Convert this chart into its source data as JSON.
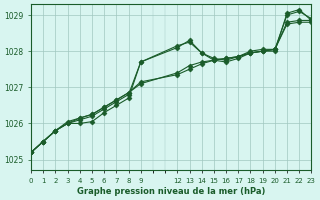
{
  "title": "Graphe pression niveau de la mer (hPa)",
  "bg_color": "#d8f5f0",
  "grid_color": "#a0c8c0",
  "line_color": "#1a5c2a",
  "marker_color": "#1a5c2a",
  "xlabel_color": "#1a5c2a",
  "ylabel_ticks": [
    1025,
    1026,
    1027,
    1028,
    1029
  ],
  "xlim": [
    0,
    23
  ],
  "ylim": [
    1024.7,
    1029.3
  ],
  "xticks": [
    0,
    1,
    2,
    3,
    4,
    5,
    6,
    7,
    8,
    9,
    12,
    13,
    14,
    15,
    16,
    17,
    18,
    19,
    20,
    21,
    22,
    23
  ],
  "series": [
    [
      1025.2,
      1025.5,
      1025.8,
      1026.0,
      1026.1,
      1026.2,
      1026.4,
      1026.6,
      1026.8,
      1027.7,
      null,
      null,
      1028.15,
      1028.25,
      1027.95,
      1027.8,
      1027.75,
      1027.85,
      1028.0,
      1028.05,
      1028.05,
      1029.0,
      1029.1,
      1028.9
    ],
    [
      1025.2,
      1025.5,
      1025.8,
      1026.0,
      1026.15,
      1026.25,
      1026.45,
      1026.65,
      1026.85,
      1027.1,
      null,
      null,
      1027.4,
      1027.6,
      1027.7,
      1027.75,
      1027.8,
      1027.85,
      1027.95,
      1028.0,
      1028.05,
      1028.8,
      1028.85,
      1028.85
    ],
    [
      1025.2,
      1025.5,
      1025.8,
      1026.05,
      1026.15,
      1026.25,
      1026.45,
      1026.65,
      1026.85,
      1027.15,
      null,
      null,
      1027.35,
      1027.5,
      1027.65,
      1027.75,
      1027.8,
      1027.85,
      1027.95,
      1028.0,
      1028.05,
      1028.75,
      1028.8,
      1028.8
    ],
    [
      1025.2,
      1025.5,
      1025.8,
      1026.0,
      1026.0,
      1026.05,
      1026.3,
      1026.5,
      1026.7,
      1027.7,
      null,
      null,
      1028.1,
      1028.3,
      1027.95,
      1027.75,
      1027.7,
      1027.8,
      1027.95,
      1028.0,
      1028.0,
      1029.05,
      1029.15,
      1028.85
    ]
  ]
}
